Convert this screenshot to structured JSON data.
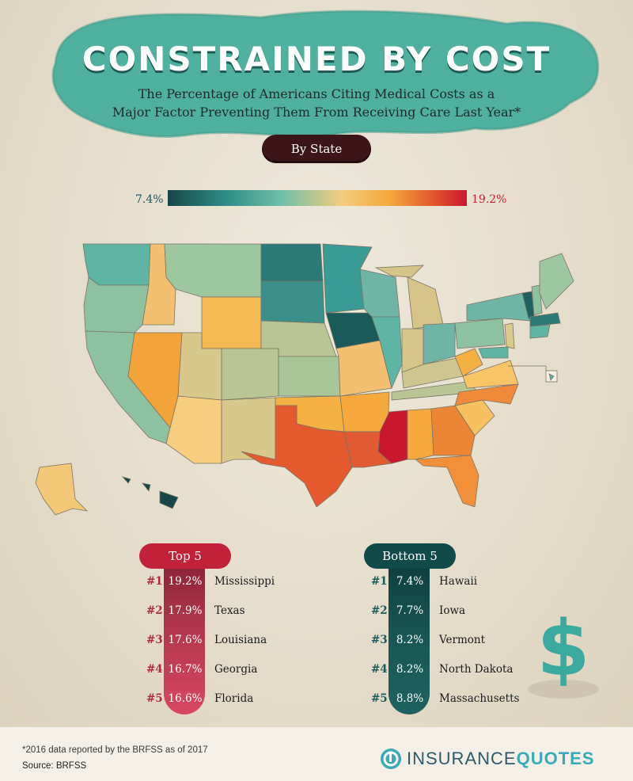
{
  "header": {
    "title": "CONSTRAINED BY COST",
    "subtitle_line1": "The Percentage of Americans Citing Medical Costs as a",
    "subtitle_line2": "Major Factor Preventing Them From Receiving Care Last Year*",
    "pill": "By State"
  },
  "legend": {
    "min": "7.4%",
    "max": "19.2%"
  },
  "colors": {
    "teal_dark": "#16464a",
    "teal": "#5fb5a4",
    "yellow": "#f2cc7e",
    "orange": "#f2a43a",
    "red": "#c9172f",
    "background": "#e7e0d0"
  },
  "top5": {
    "label": "Top 5",
    "rows": [
      {
        "rank": "#1",
        "pct": "19.2%",
        "state": "Mississippi"
      },
      {
        "rank": "#2",
        "pct": "17.9%",
        "state": "Texas"
      },
      {
        "rank": "#3",
        "pct": "17.6%",
        "state": "Louisiana"
      },
      {
        "rank": "#4",
        "pct": "16.7%",
        "state": "Georgia"
      },
      {
        "rank": "#5",
        "pct": "16.6%",
        "state": "Florida"
      }
    ]
  },
  "bottom5": {
    "label": "Bottom 5",
    "rows": [
      {
        "rank": "#1",
        "pct": "7.4%",
        "state": "Hawaii"
      },
      {
        "rank": "#2",
        "pct": "7.7%",
        "state": "Iowa"
      },
      {
        "rank": "#3",
        "pct": "8.2%",
        "state": "Vermont"
      },
      {
        "rank": "#4",
        "pct": "8.2%",
        "state": "North Dakota"
      },
      {
        "rank": "#5",
        "pct": "8.8%",
        "state": "Massachusetts"
      }
    ]
  },
  "icons": {
    "dollar": "dollar-sign-icon",
    "logo": "insurancequotes-logo-icon"
  },
  "footer": {
    "footnote": "*2016 data reported by the BRFSS as of 2017",
    "source": "Source: BRFSS",
    "logo_part1": "INSURANCE",
    "logo_part2": "QUOTES"
  }
}
